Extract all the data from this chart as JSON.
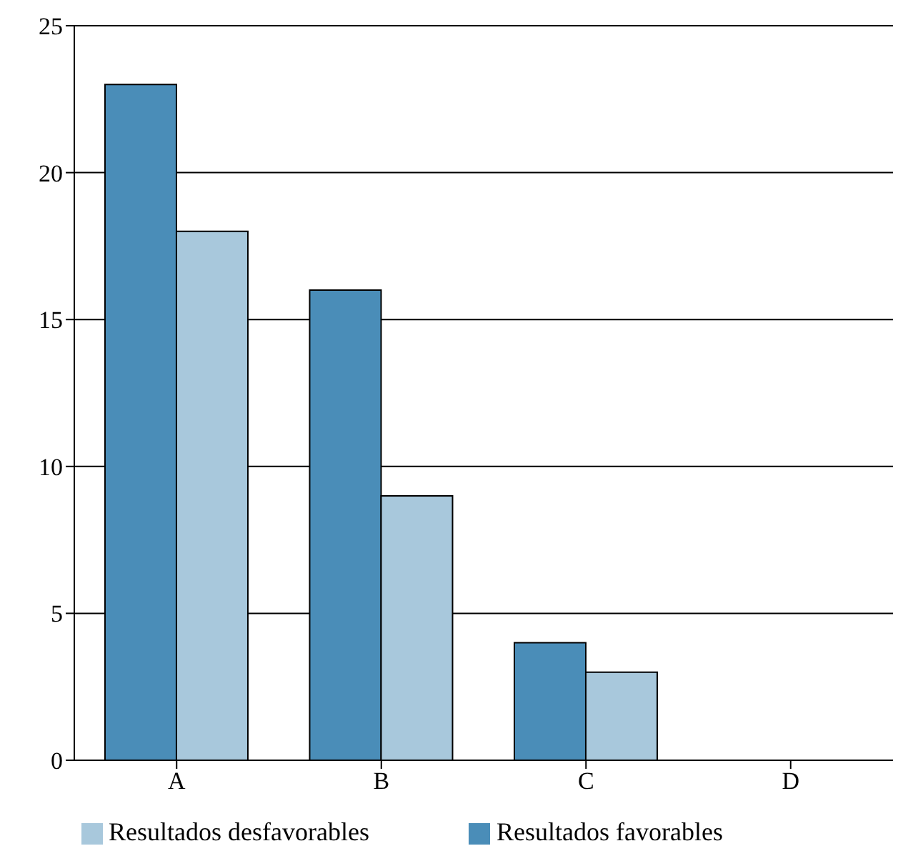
{
  "chart_data": {
    "type": "bar",
    "categories": [
      "A",
      "B",
      "C",
      "D"
    ],
    "series": [
      {
        "name": "Resultados favorables",
        "color": "#4a8db8",
        "values": [
          23,
          16,
          4,
          0
        ]
      },
      {
        "name": "Resultados desfavorables",
        "color": "#a8c8dc",
        "values": [
          18,
          9,
          3,
          0
        ]
      }
    ],
    "ylim": [
      0,
      25
    ],
    "yticks": [
      0,
      5,
      10,
      15,
      20,
      25
    ],
    "grid": "y",
    "legend": "bottom"
  }
}
